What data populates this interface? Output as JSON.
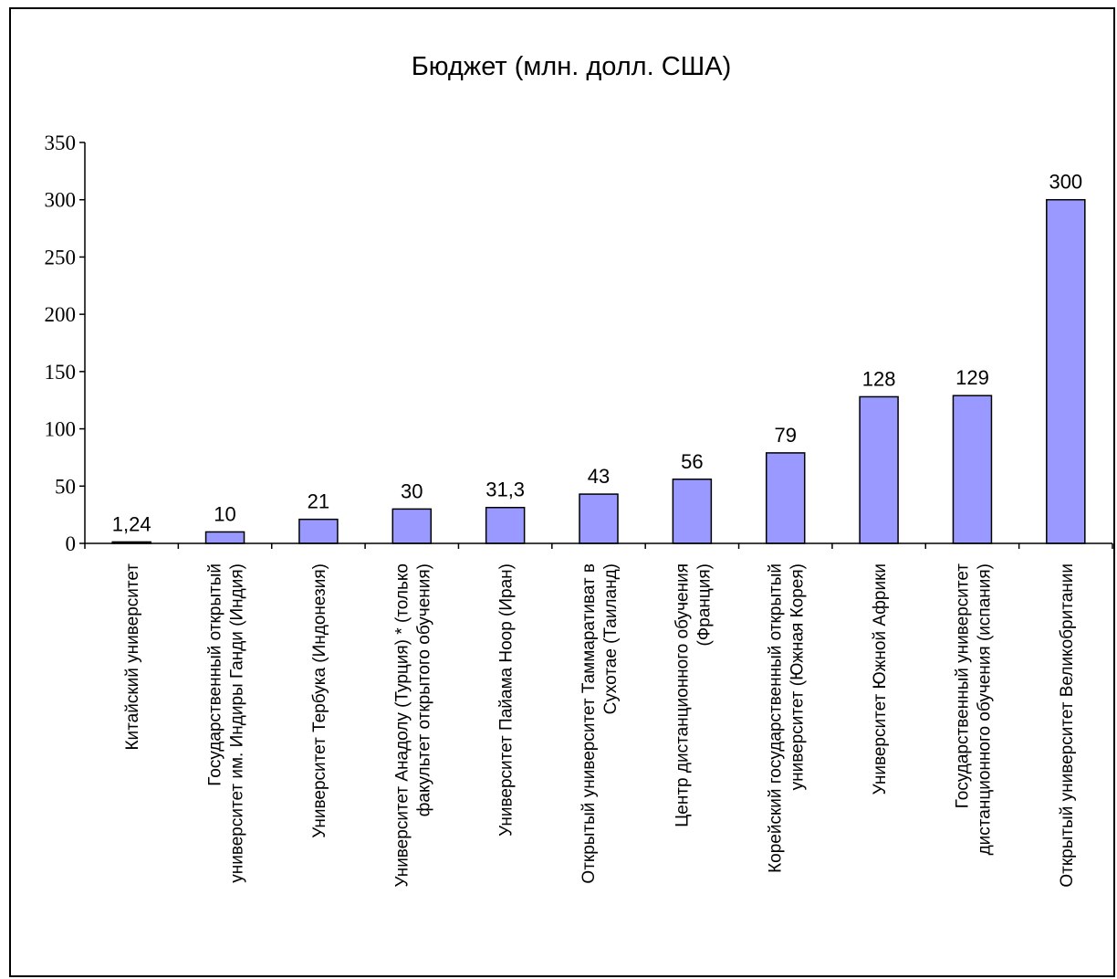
{
  "chart_data": {
    "type": "bar",
    "title": "Бюджет (млн. долл. США)",
    "xlabel": "",
    "ylabel": "",
    "ylim": [
      0,
      350
    ],
    "yticks": [
      0,
      50,
      100,
      150,
      200,
      250,
      300,
      350
    ],
    "ytick_labels": [
      "0",
      "50",
      "100",
      "150",
      "200",
      "250",
      "300",
      "350"
    ],
    "grid": false,
    "legend": "none",
    "bar_color": "#9999FF",
    "categories": [
      [
        "Китайский университет"
      ],
      [
        "Государственный открытый",
        "университет им. Индиры Ганди (Индия)"
      ],
      [
        "Университет Тербука (Индонезия)"
      ],
      [
        "Университет Анадолу (Турция) * (только",
        "факультет открытого обучения)"
      ],
      [
        "Университет Пайама Ноор (Иран)"
      ],
      [
        "Открытый университет Таммаративат в",
        "Сухотае (Таиланд)"
      ],
      [
        "Центр дистанционного обучения",
        "(Франция)"
      ],
      [
        "Корейский государственный открытый",
        "университет (Южная Корея)"
      ],
      [
        "Университет Южной Африки"
      ],
      [
        "Государственный университет",
        "дистанционного обучения (испания)"
      ],
      [
        "Открытый университет Великобритании"
      ]
    ],
    "values": [
      1.24,
      10,
      21,
      30,
      31.3,
      43,
      56,
      79,
      128,
      129,
      300
    ],
    "data_labels": [
      "1,24",
      "10",
      "21",
      "30",
      "31,3",
      "43",
      "56",
      "79",
      "128",
      "129",
      "300"
    ]
  }
}
